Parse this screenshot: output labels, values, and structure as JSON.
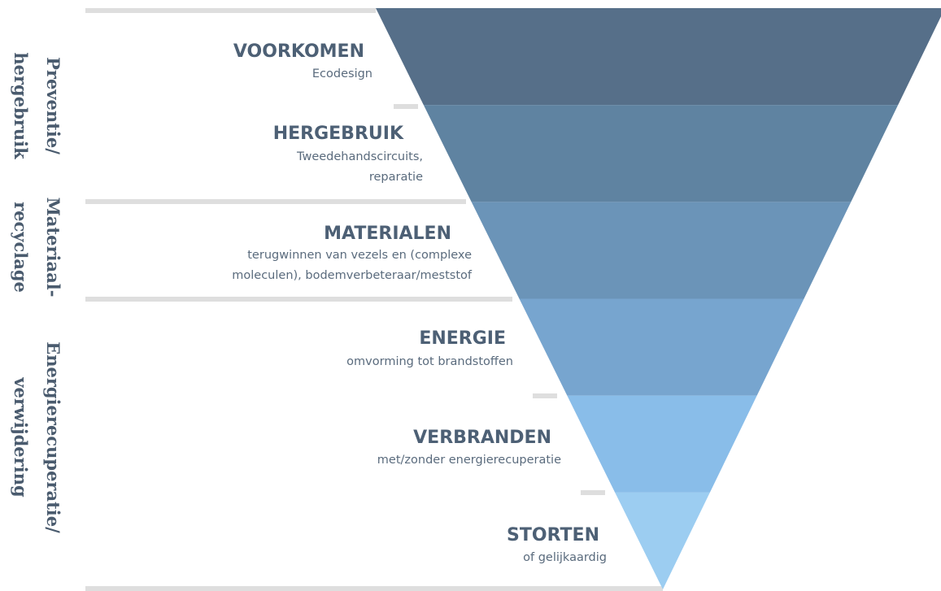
{
  "levels": [
    {
      "title": "VOORKOMEN",
      "lines": [
        "Ecodesign"
      ]
    },
    {
      "title": "HERGEBRUIK",
      "lines": [
        "Tweedehandscircuits,",
        "reparatie"
      ]
    },
    {
      "title": "MATERIALEN",
      "lines": [
        "terugwinnen van vezels en (complexe",
        "moleculen), bodemverbeteraar/meststof"
      ]
    },
    {
      "title": "ENERGIE",
      "lines": [
        "omvorming tot brandstoffen"
      ]
    },
    {
      "title": "VERBRANDEN",
      "lines": [
        "met/zonder energierecuperatie"
      ]
    },
    {
      "title": "STORTEN",
      "lines": [
        "of gelijkaardig"
      ]
    }
  ],
  "side_labels": [
    {
      "lines": [
        "Preventie/",
        "hergebruik"
      ]
    },
    {
      "lines": [
        "Materiaal-",
        "recyclage"
      ]
    },
    {
      "lines": [
        "Energierecuperatie/",
        "verwijdering"
      ]
    }
  ]
}
